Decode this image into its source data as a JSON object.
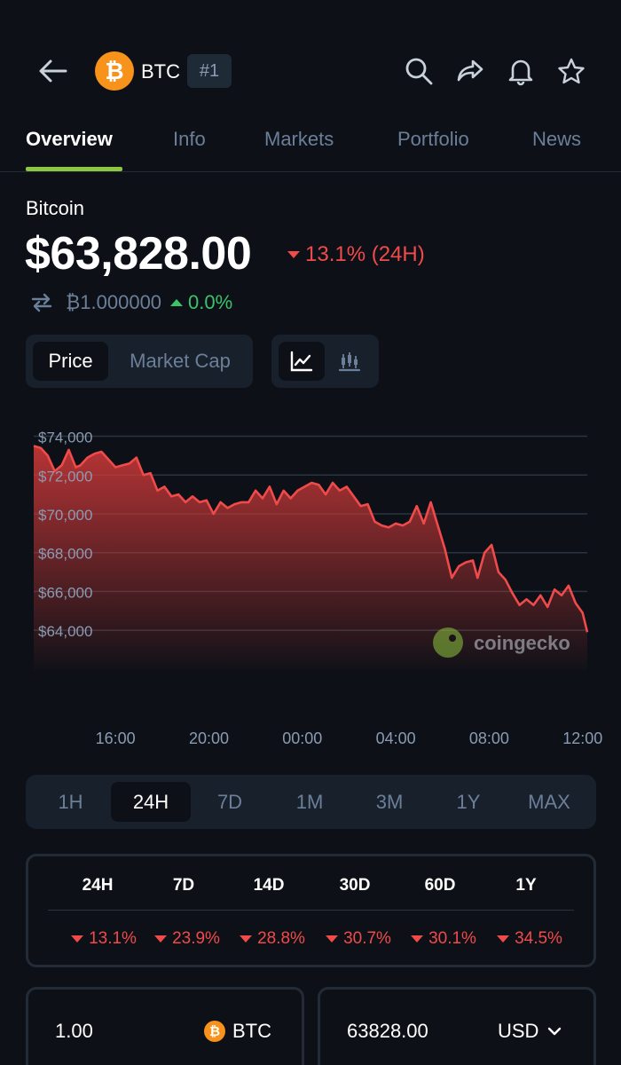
{
  "header": {
    "coin_symbol": "BTC",
    "rank": "#1",
    "icons": [
      "back-arrow-icon",
      "search-icon",
      "share-icon",
      "bell-icon",
      "star-icon"
    ],
    "logo_glyph": "₿"
  },
  "tabs": [
    {
      "label": "Overview",
      "active": true
    },
    {
      "label": "Info"
    },
    {
      "label": "Markets"
    },
    {
      "label": "Portfolio"
    },
    {
      "label": "News"
    }
  ],
  "coin": {
    "name": "Bitcoin",
    "price": "$63,828.00",
    "change_24h": "13.1% (24H)",
    "btc_value": "₿1.000000",
    "btc_change": "0.0%"
  },
  "toggles": {
    "price_label": "Price",
    "market_cap_label": "Market Cap",
    "chart_icons": [
      "line-chart-icon",
      "candlestick-chart-icon"
    ]
  },
  "chart_data": {
    "type": "area",
    "y_tick_labels": [
      "$74,000",
      "$72,000",
      "$70,000",
      "$68,000",
      "$66,000",
      "$64,000"
    ],
    "y_ticks": [
      74000,
      72000,
      70000,
      68000,
      66000,
      64000
    ],
    "ylim": [
      63000,
      74300
    ],
    "x_tick_labels": [
      "16:00",
      "20:00",
      "00:00",
      "04:00",
      "08:00",
      "12:00"
    ],
    "x_tick_hours": [
      3.5,
      7.5,
      11.5,
      15.5,
      19.5,
      23.5
    ],
    "watermark": "coingecko",
    "grid": true,
    "color": "#f04a4a",
    "series": [
      {
        "x": [
          0,
          0.3,
          0.6,
          0.9,
          1.2,
          1.5,
          1.8,
          2.0,
          2.3,
          2.6,
          2.9,
          3.2,
          3.5,
          3.8,
          4.1,
          4.4,
          4.7,
          5.0,
          5.3,
          5.6,
          5.9,
          6.2,
          6.5,
          6.8,
          7.1,
          7.4,
          7.7,
          8.0,
          8.3,
          8.6,
          8.9,
          9.2,
          9.5,
          9.8,
          10.1,
          10.4,
          10.7,
          11.0,
          11.3,
          11.6,
          11.9,
          12.2,
          12.5,
          12.8,
          13.1,
          13.4,
          13.7,
          14.0,
          14.3,
          14.6,
          14.9,
          15.2,
          15.5,
          15.8,
          16.1,
          16.4,
          16.7,
          17.0,
          17.3,
          17.6,
          17.9,
          18.2,
          18.5,
          18.8,
          19.0,
          19.3,
          19.6,
          19.9,
          20.2,
          20.5,
          20.8,
          21.1,
          21.4,
          21.7,
          22.0,
          22.3,
          22.6,
          22.9,
          23.2,
          23.5,
          23.7
        ],
        "y": [
          73500,
          73400,
          73000,
          72200,
          72500,
          73300,
          72400,
          72500,
          72900,
          73100,
          73200,
          72800,
          72400,
          72500,
          72600,
          72900,
          72000,
          72100,
          71200,
          71400,
          70900,
          71000,
          70600,
          70900,
          70600,
          70700,
          70000,
          70600,
          70300,
          70500,
          70600,
          70600,
          71200,
          70800,
          71400,
          70500,
          71200,
          70800,
          71200,
          71400,
          71600,
          71500,
          71000,
          71600,
          71200,
          71400,
          70900,
          70400,
          70500,
          69600,
          69400,
          69300,
          69500,
          69400,
          69600,
          70400,
          69500,
          70600,
          69400,
          68200,
          66700,
          67300,
          67500,
          67600,
          66700,
          68000,
          68400,
          67000,
          66600,
          65900,
          65300,
          65600,
          65300,
          65800,
          65200,
          66100,
          65800,
          66300,
          65400,
          64900,
          63900
        ]
      }
    ]
  },
  "periods": [
    {
      "label": "1H"
    },
    {
      "label": "24H",
      "active": true
    },
    {
      "label": "7D"
    },
    {
      "label": "1M"
    },
    {
      "label": "3M"
    },
    {
      "label": "1Y"
    },
    {
      "label": "MAX"
    }
  ],
  "performance": {
    "headers": [
      "24H",
      "7D",
      "14D",
      "30D",
      "60D",
      "1Y"
    ],
    "values": [
      "13.1%",
      "23.9%",
      "28.8%",
      "30.7%",
      "30.1%",
      "34.5%"
    ],
    "direction": "down"
  },
  "converter": {
    "from_amount": "1.00",
    "from_unit": "BTC",
    "to_amount": "63828.00",
    "to_unit": "USD"
  },
  "colors": {
    "background": "#0d1117",
    "accent_green": "#8dc63f",
    "negative": "#f04a4a",
    "positive": "#3bc26b",
    "muted": "#6b7f99",
    "btc_orange": "#f7931a"
  }
}
